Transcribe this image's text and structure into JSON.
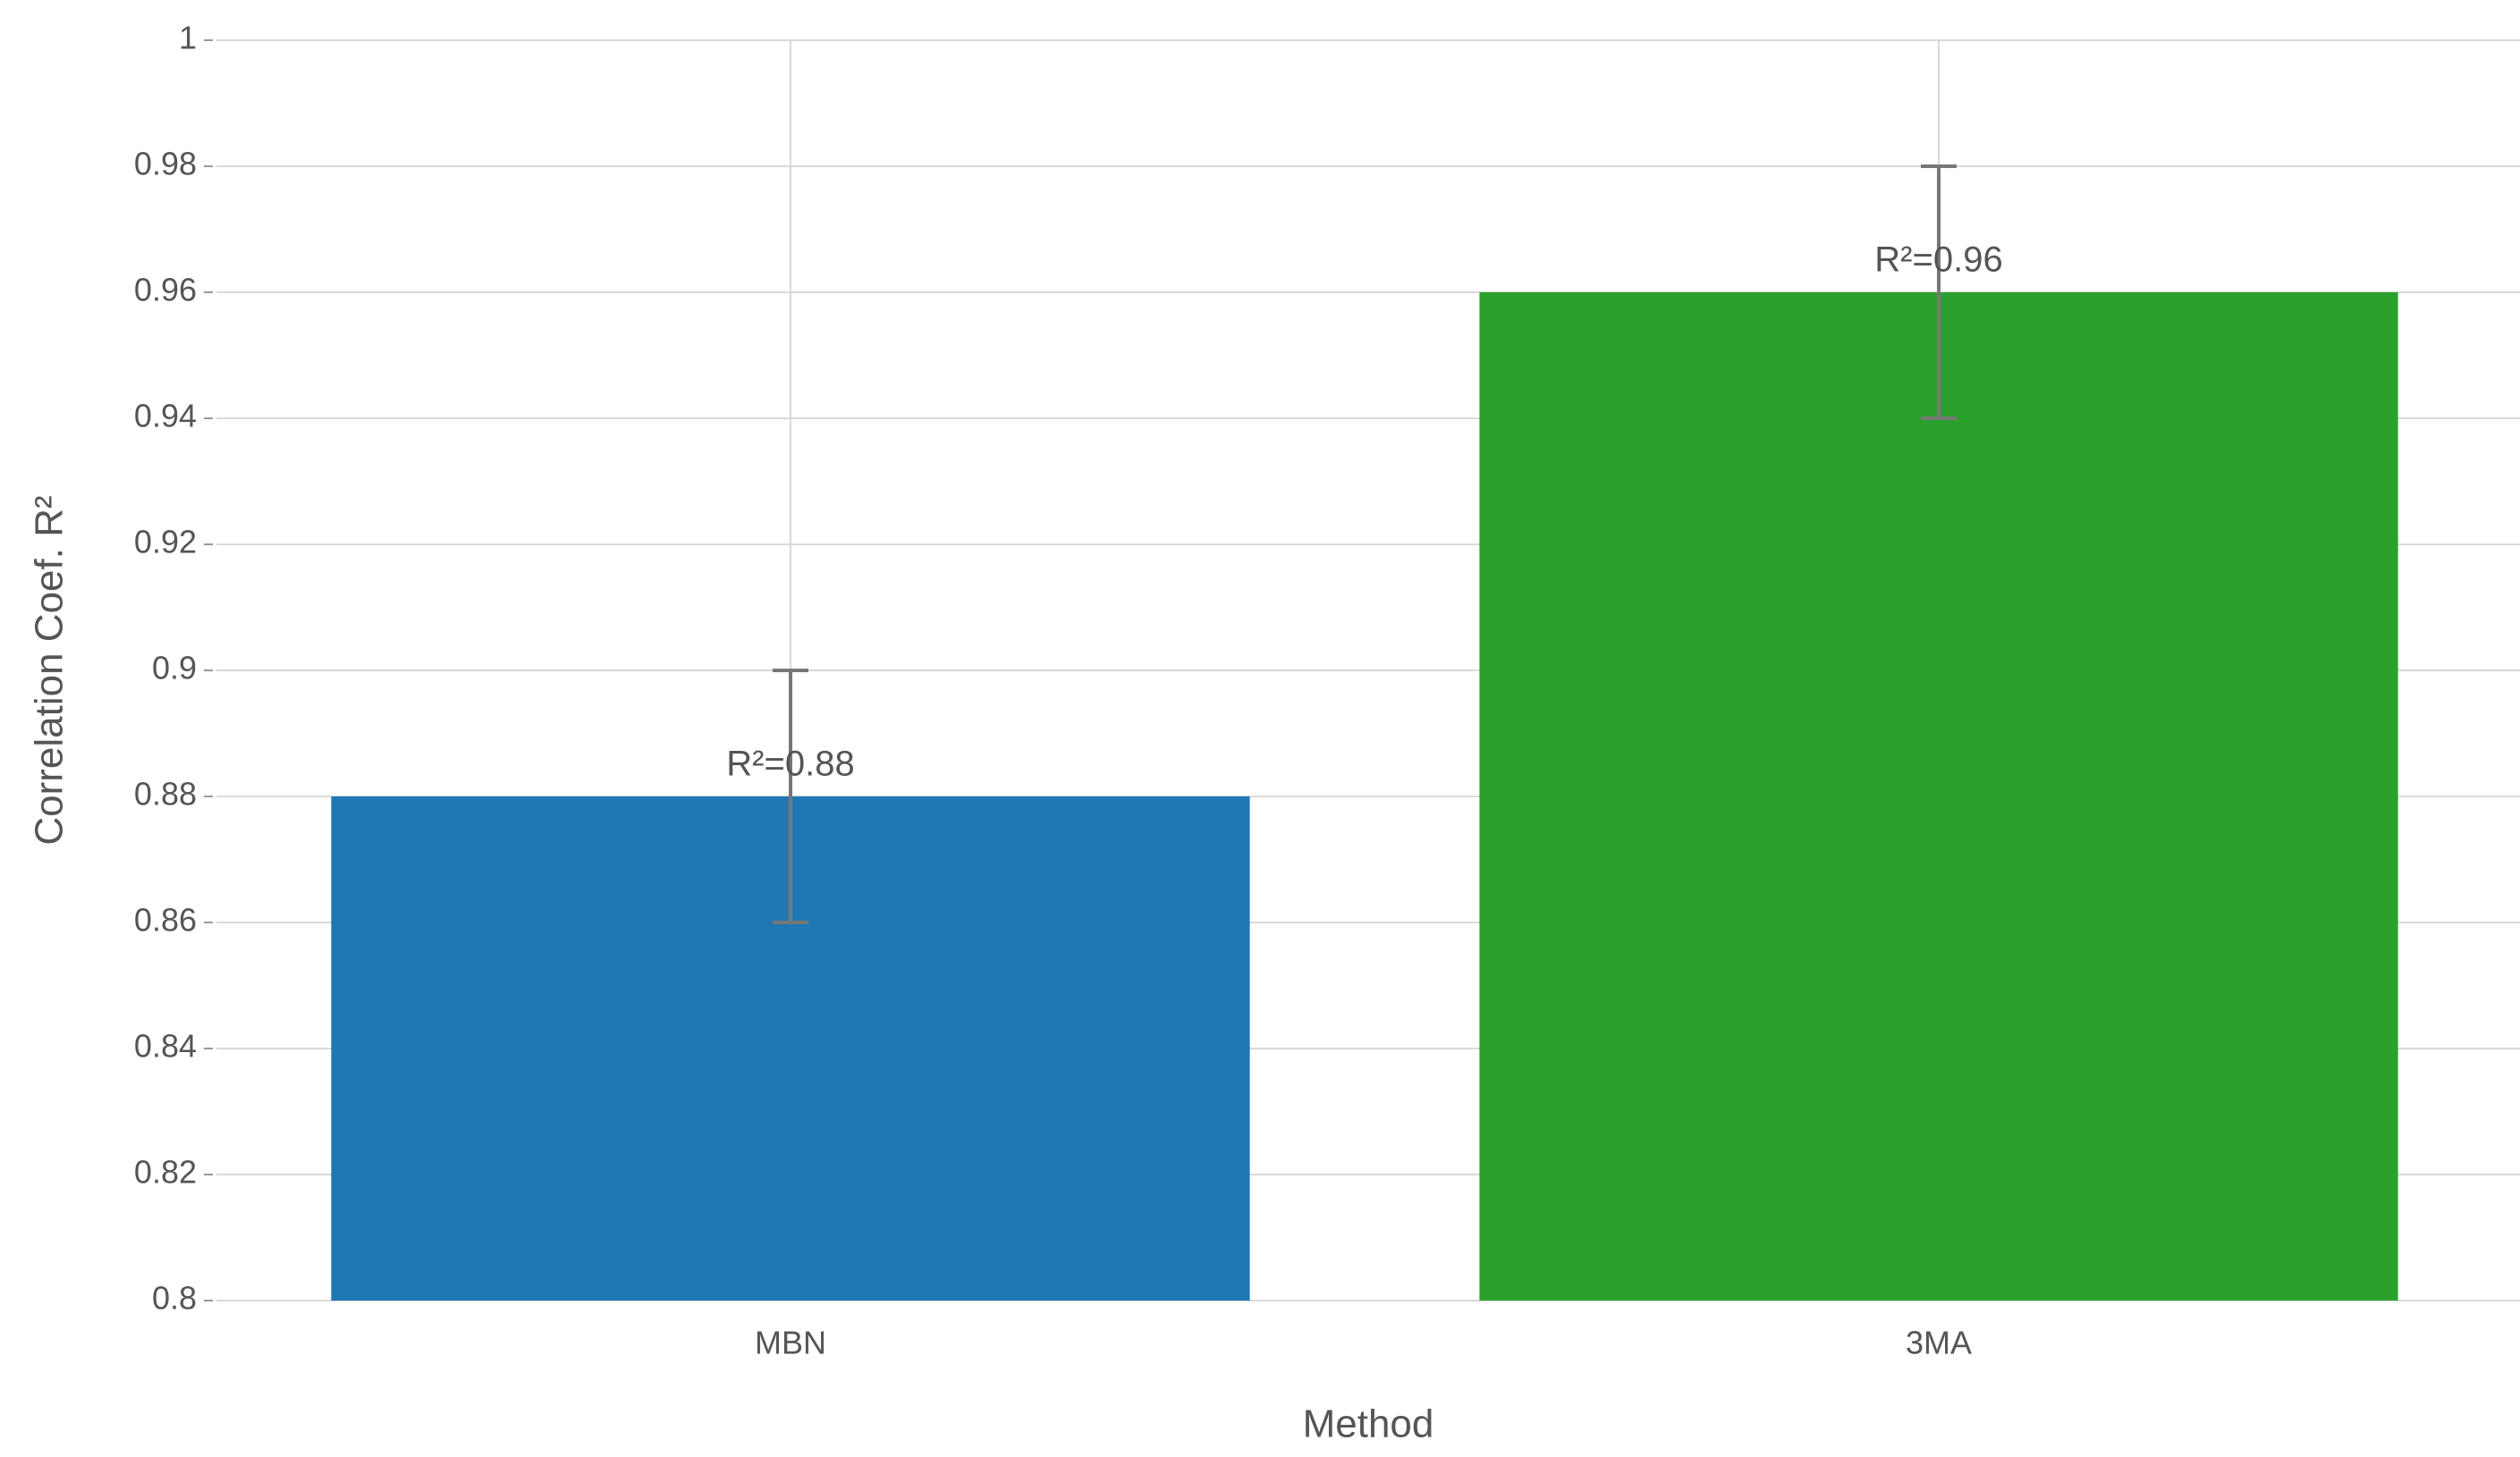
{
  "chart_data": {
    "type": "bar",
    "x_label": "Method",
    "y_label": "Correlation Coef. R²",
    "categories": [
      "MBN",
      "3MA"
    ],
    "values": [
      0.88,
      0.96
    ],
    "errors": [
      0.02,
      0.02
    ],
    "value_labels": [
      "R²=0.88",
      "R²=0.96"
    ],
    "colors": [
      "#1f77b4",
      "#2ca02c"
    ],
    "ylim": [
      0.8,
      1
    ],
    "yticks": [
      0.8,
      0.82,
      0.84,
      0.86,
      0.88,
      0.9,
      0.92,
      0.94,
      0.96,
      0.98,
      1
    ],
    "grid": true
  }
}
